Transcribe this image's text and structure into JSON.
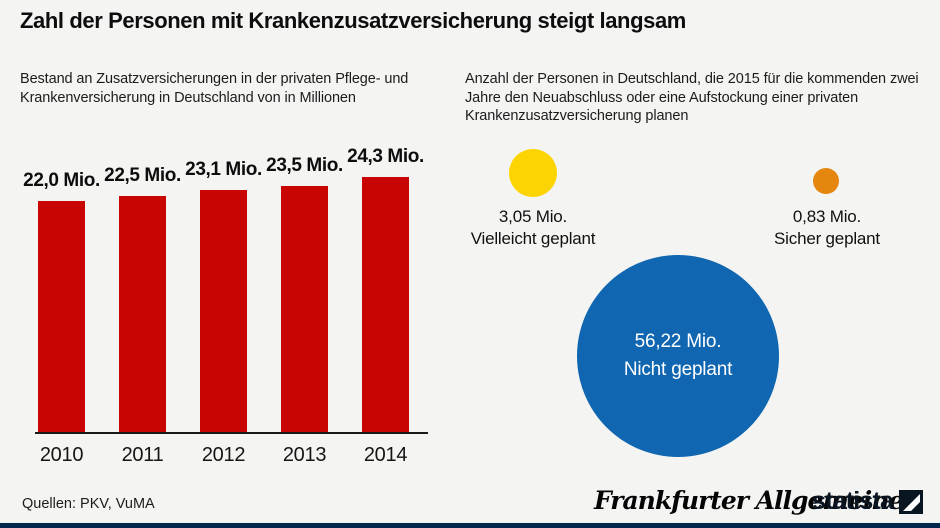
{
  "title": "Zahl der Personen mit Krankenzusatzversicherung steigt langsam",
  "colors": {
    "bar_red": "#c80502",
    "bubble_yellow": "#fcd402",
    "bubble_orange": "#e5870f",
    "bubble_blue": "#1066b0",
    "footer_bar_navy": "#02274b",
    "background": "#f4f4f2"
  },
  "left_chart": {
    "subtitle": "Bestand an Zusatzversicherungen in der privaten Pflege- und Krankenversicherung in Deutschland von in Millionen",
    "bars": [
      {
        "year": "2010",
        "label": "22,0 Mio.",
        "value": 22.0
      },
      {
        "year": "2011",
        "label": "22,5 Mio.",
        "value": 22.5
      },
      {
        "year": "2012",
        "label": "23,1 Mio.",
        "value": 23.1
      },
      {
        "year": "2013",
        "label": "23,5 Mio.",
        "value": 23.5
      },
      {
        "year": "2014",
        "label": "24,3 Mio.",
        "value": 24.3
      }
    ]
  },
  "right_chart": {
    "subtitle": "Anzahl der Personen in Deutschland, die 2015 für die kommenden zwei Jahre den Neuabschluss oder eine Aufstockung einer privaten Krankenzusatzversicherung planen",
    "bubbles": [
      {
        "value_label": "3,05 Mio.",
        "category": "Vielleicht geplant",
        "value": 3.05,
        "color": "#fcd402"
      },
      {
        "value_label": "0,83 Mio.",
        "category": "Sicher geplant",
        "value": 0.83,
        "color": "#e5870f"
      },
      {
        "value_label": "56,22 Mio.",
        "category": "Nicht geplant",
        "value": 56.22,
        "color": "#1066b0"
      }
    ]
  },
  "chart_data": [
    {
      "type": "bar",
      "title": "Bestand an Zusatzversicherungen in der privaten Pflege- und Krankenversicherung in Deutschland von in Millionen",
      "categories": [
        "2010",
        "2011",
        "2012",
        "2013",
        "2014"
      ],
      "values": [
        22.0,
        22.5,
        23.1,
        23.5,
        24.3
      ],
      "data_labels": [
        "22,0 Mio.",
        "22,5 Mio.",
        "23,1 Mio.",
        "23,5 Mio.",
        "24,3 Mio."
      ],
      "unit": "Mio.",
      "xlabel": "",
      "ylabel": "",
      "ylim": [
        0,
        26
      ],
      "grid": false,
      "bar_color": "#c80502",
      "legend": "none"
    },
    {
      "type": "scatter",
      "subtype": "bubble",
      "title": "Anzahl der Personen in Deutschland, die 2015 für die kommenden zwei Jahre den Neuabschluss oder eine Aufstockung einer privaten Krankenzusatzversicherung planen",
      "points": [
        {
          "label": "Vielleicht geplant",
          "value": 3.05,
          "value_label": "3,05 Mio.",
          "color": "#fcd402"
        },
        {
          "label": "Sicher geplant",
          "value": 0.83,
          "value_label": "0,83 Mio.",
          "color": "#e5870f"
        },
        {
          "label": "Nicht geplant",
          "value": 56.22,
          "value_label": "56,22 Mio.",
          "color": "#1066b0"
        }
      ],
      "unit": "Mio.",
      "legend": "none"
    }
  ],
  "footer": {
    "sources": "Quellen: PKV, VuMA",
    "faz_logo": "Frankfurter Allgemeine",
    "statista_logo": "statista"
  }
}
